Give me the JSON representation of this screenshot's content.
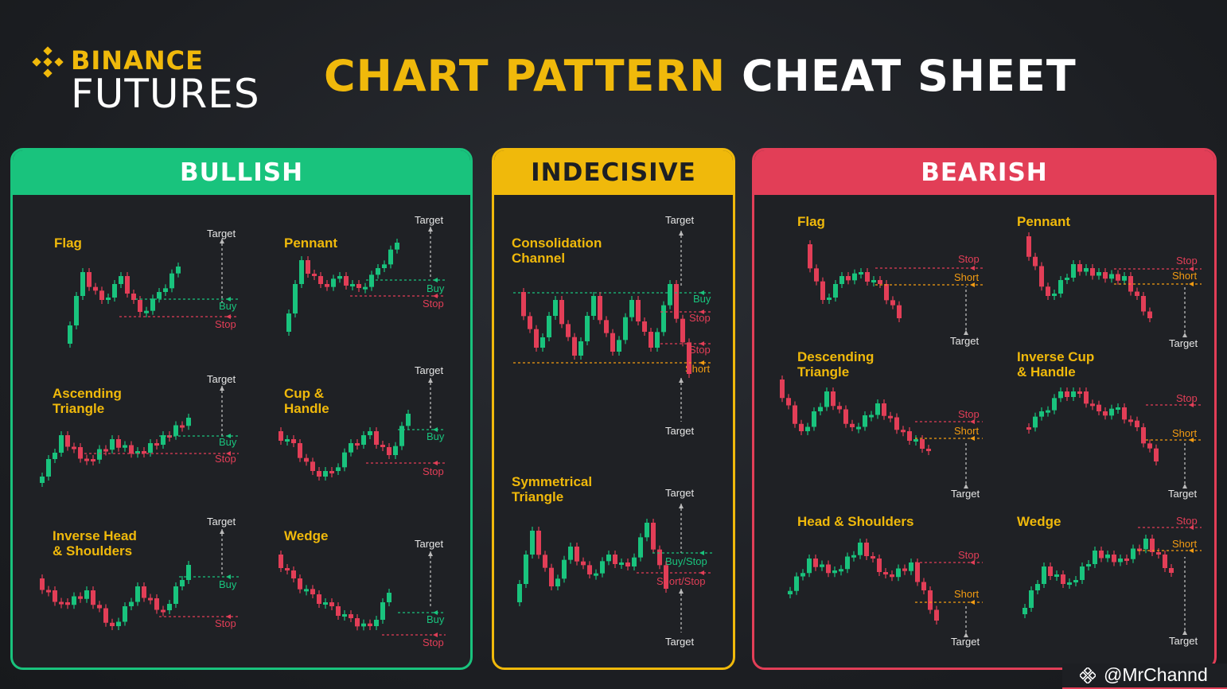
{
  "brand": {
    "line1": "BINANCE",
    "line2": "FUTURES"
  },
  "title": {
    "highlight": "CHART PATTERN",
    "rest": "CHEAT SHEET"
  },
  "colors": {
    "bull": "#19c37d",
    "bear": "#e23e57",
    "accent": "#f0b90b",
    "orange": "#f39c12"
  },
  "panels": {
    "bullish": {
      "label": "BULLISH"
    },
    "indecisive": {
      "label": "INDECISIVE"
    },
    "bearish": {
      "label": "BEARISH"
    }
  },
  "patterns": {
    "bull_flag": {
      "name": "Flag",
      "labels": [
        "Target",
        "Buy",
        "Stop"
      ]
    },
    "bull_pennant": {
      "name": "Pennant",
      "labels": [
        "Target",
        "Buy",
        "Stop"
      ]
    },
    "bull_asc": {
      "name": "Ascending\nTriangle",
      "labels": [
        "Target",
        "Buy",
        "Stop"
      ]
    },
    "bull_cup": {
      "name": "Cup &\nHandle",
      "labels": [
        "Target",
        "Buy",
        "Stop"
      ]
    },
    "bull_ihs": {
      "name": "Inverse Head\n& Shoulders",
      "labels": [
        "Target",
        "Buy",
        "Stop"
      ]
    },
    "bull_wedge": {
      "name": "Wedge",
      "labels": [
        "Target",
        "Buy",
        "Stop"
      ]
    },
    "ind_channel": {
      "name": "Consolidation\nChannel",
      "labels": [
        "Target",
        "Buy",
        "Stop",
        "Stop",
        "Short",
        "Target"
      ]
    },
    "ind_sym": {
      "name": "Symmetrical\nTriangle",
      "labels": [
        "Target",
        "Buy/Stop",
        "Short/Stop",
        "Target"
      ]
    },
    "bear_flag": {
      "name": "Flag",
      "labels": [
        "Stop",
        "Short",
        "Target"
      ]
    },
    "bear_pennant": {
      "name": "Pennant",
      "labels": [
        "Stop",
        "Short",
        "Target"
      ]
    },
    "bear_desc": {
      "name": "Descending\nTriangle",
      "labels": [
        "Stop",
        "Short",
        "Target"
      ]
    },
    "bear_icup": {
      "name": "Inverse Cup\n& Handle",
      "labels": [
        "Stop",
        "Short",
        "Target"
      ]
    },
    "bear_hs": {
      "name": "Head & Shoulders",
      "labels": [
        "Stop",
        "Short",
        "Target"
      ]
    },
    "bear_wedge": {
      "name": "Wedge",
      "labels": [
        "Stop",
        "Short",
        "Target"
      ]
    }
  },
  "credit": {
    "handle": "@MrChannd"
  }
}
